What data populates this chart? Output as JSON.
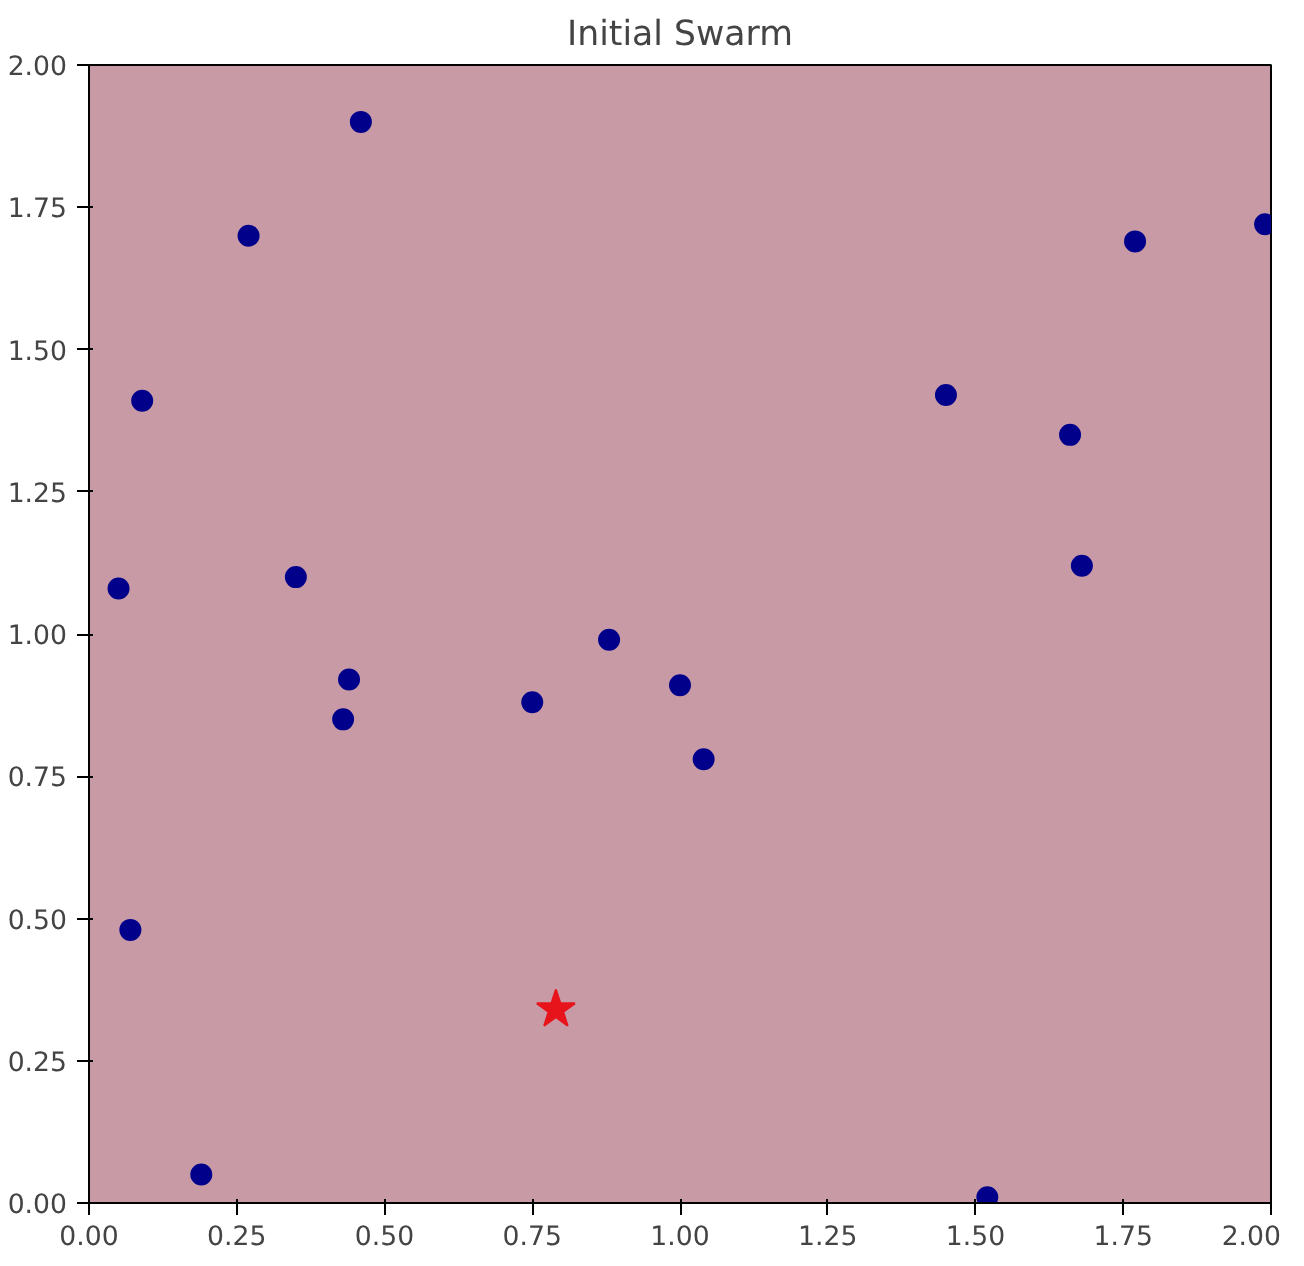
{
  "chart_data": {
    "type": "scatter",
    "title": "Initial Swarm",
    "xlim": [
      0,
      2
    ],
    "ylim": [
      0,
      2
    ],
    "xticks": [
      {
        "value": 0,
        "label": "0.00"
      },
      {
        "value": 0.25,
        "label": "0.25"
      },
      {
        "value": 0.5,
        "label": "0.50"
      },
      {
        "value": 0.75,
        "label": "0.75"
      },
      {
        "value": 1,
        "label": "1.00"
      },
      {
        "value": 1.25,
        "label": "1.25"
      },
      {
        "value": 1.5,
        "label": "1.50"
      },
      {
        "value": 1.75,
        "label": "1.75"
      },
      {
        "value": 2,
        "label": "2.00"
      }
    ],
    "yticks": [
      {
        "value": 0,
        "label": "0.00"
      },
      {
        "value": 0.25,
        "label": "0.25"
      },
      {
        "value": 0.5,
        "label": "0.50"
      },
      {
        "value": 0.75,
        "label": "0.75"
      },
      {
        "value": 1,
        "label": "1.00"
      },
      {
        "value": 1.25,
        "label": "1.25"
      },
      {
        "value": 1.5,
        "label": "1.50"
      },
      {
        "value": 1.75,
        "label": "1.75"
      },
      {
        "value": 2,
        "label": "2.00"
      }
    ],
    "grid": false,
    "series": [
      {
        "color": "#00008b",
        "marker": "circle",
        "x": [
          0.46,
          0.27,
          0.09,
          0.05,
          0.35,
          0.44,
          0.43,
          0.75,
          0.88,
          1.0,
          1.04,
          1.45,
          1.66,
          1.68,
          1.77,
          1.99,
          0.07,
          0.19,
          1.52
        ],
        "values": [
          1.9,
          1.7,
          1.41,
          1.08,
          1.1,
          0.92,
          0.85,
          0.88,
          0.99,
          0.91,
          0.78,
          1.42,
          1.35,
          1.12,
          1.69,
          1.72,
          0.48,
          0.05,
          0.01
        ]
      },
      {
        "color": "#e8141c",
        "marker": "star",
        "x": [
          0.79
        ],
        "values": [
          0.34
        ]
      }
    ]
  }
}
